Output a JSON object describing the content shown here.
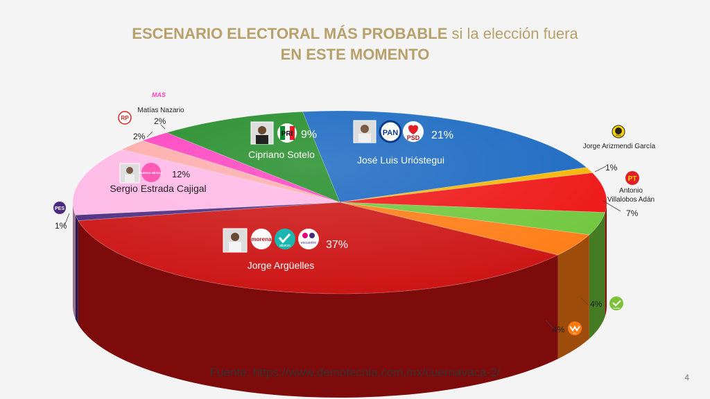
{
  "title": {
    "bold": "ESCENARIO ELECTORAL MÁS PROBABLE",
    "light": "si la elección fuera",
    "line2": "EN ESTE MOMENTO"
  },
  "source": "Fuente: https://www.demotecnia.com.mx/cuernavaca-2/",
  "page_number": "4",
  "chart_data": {
    "type": "pie",
    "title": "ESCENARIO ELECTORAL MÁS PROBABLE si la elección fuera EN ESTE MOMENTO",
    "unit": "%",
    "slices": [
      {
        "label": "José Luis Urióstegui",
        "value": 21,
        "value_label": "21%",
        "parties": [
          "PAN",
          "PSD"
        ],
        "color": "#1565c0"
      },
      {
        "label": "Jorge Arizmendi García",
        "value": 1,
        "value_label": "1%",
        "parties": [
          "PRD"
        ],
        "color": "#f4b400"
      },
      {
        "label": "Antonio Villalobos Adán",
        "value": 7,
        "value_label": "7%",
        "parties": [
          "PT"
        ],
        "color": "#ee1111"
      },
      {
        "label": "",
        "value": 4,
        "value_label": "4%",
        "parties": [
          "VERDE"
        ],
        "color": "#6ec639"
      },
      {
        "label": "",
        "value": 4,
        "value_label": "4%",
        "parties": [
          "MC"
        ],
        "color": "#ff7b12"
      },
      {
        "label": "Jorge Argüelles",
        "value": 37,
        "value_label": "37%",
        "parties": [
          "morena",
          "nueva alianza",
          "encuentro social"
        ],
        "color": "#cc1111"
      },
      {
        "label": "",
        "value": 1,
        "value_label": "1%",
        "parties": [
          "PES"
        ],
        "color": "#4a2a80"
      },
      {
        "label": "Sergio Estrada Cajigal",
        "value": 12,
        "value_label": "12%",
        "parties": [
          "FUERZA MÉXICO"
        ],
        "color": "#ffb7e6"
      },
      {
        "label": "",
        "value": 2,
        "value_label": "2%",
        "parties": [
          "RP"
        ],
        "color": "#ffaaaa"
      },
      {
        "label": "Matías Nazario",
        "value": 2,
        "value_label": "2%",
        "parties": [
          "MAS"
        ],
        "color": "#ff3fbf"
      },
      {
        "label": "Cipriano Sotelo",
        "value": 9,
        "value_label": "9%",
        "parties": [
          "PRI"
        ],
        "color": "#1e8a24"
      }
    ]
  },
  "badges": {
    "pan": "PAN",
    "psd": "PSD",
    "pri": "PRI",
    "pt": "PT",
    "prd": "PRD",
    "pes": "PES",
    "rp": "RP",
    "mas": "MAS",
    "morena": "morena",
    "alianza": "alianza",
    "encuentro": "encuentro",
    "fuerza": "FUERZA MÉXICO",
    "mc": "MC",
    "verde": "VERDE"
  }
}
